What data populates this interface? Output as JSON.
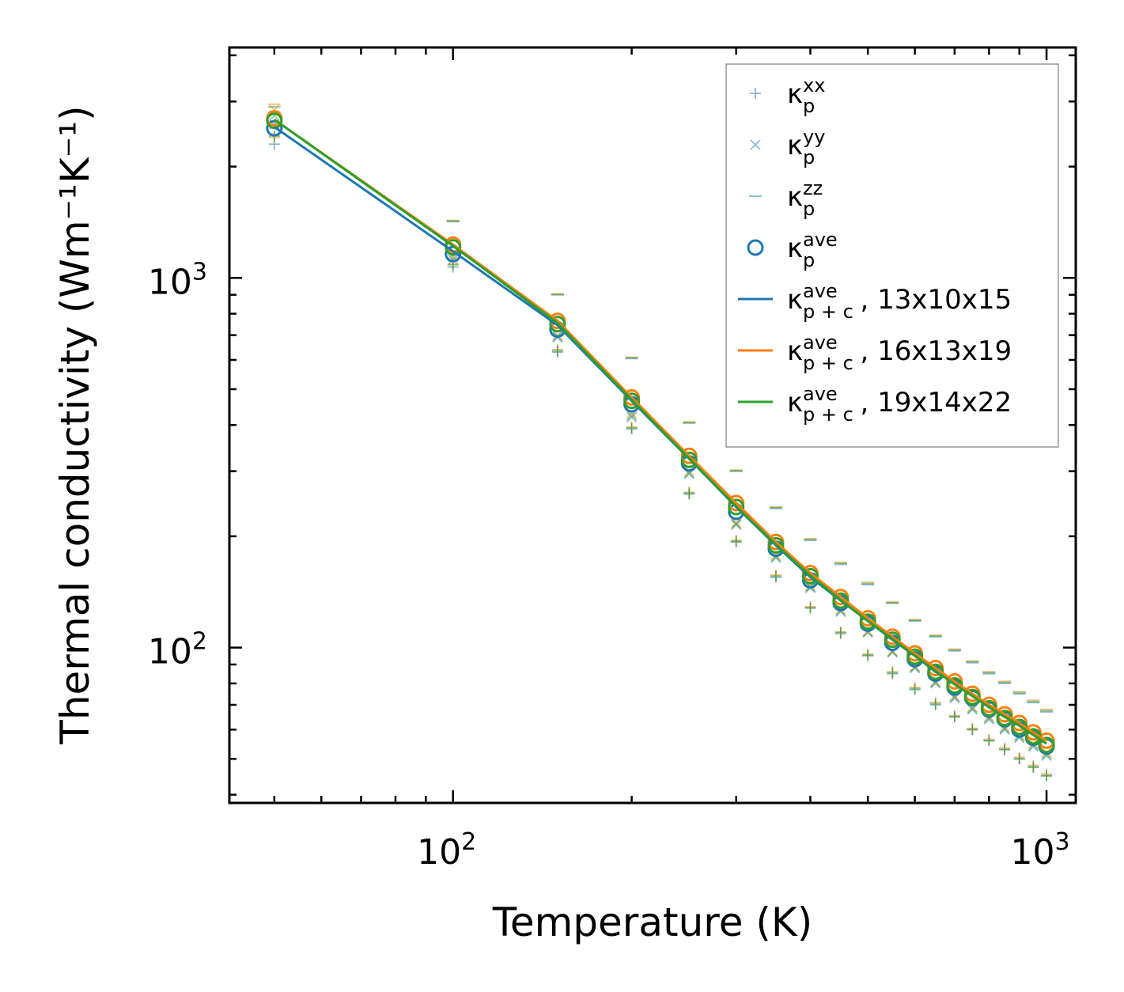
{
  "chart_data": {
    "type": "line",
    "scale": {
      "x": "log",
      "y": "log"
    },
    "xlabel": "Temperature (K)",
    "ylabel": "Thermal conductivity (Wm⁻¹K⁻¹)",
    "xlim": [
      42,
      1120
    ],
    "ylim": [
      38,
      4200
    ],
    "x_major_ticks": [
      {
        "base": "10",
        "exp": "2",
        "value": 100
      },
      {
        "base": "10",
        "exp": "3",
        "value": 1000
      }
    ],
    "y_major_ticks": [
      {
        "base": "10",
        "exp": "2",
        "value": 100
      },
      {
        "base": "10",
        "exp": "3",
        "value": 1000
      }
    ],
    "x": [
      50,
      100,
      150,
      200,
      250,
      300,
      350,
      400,
      450,
      500,
      550,
      600,
      650,
      700,
      750,
      800,
      850,
      900,
      950,
      1000
    ],
    "series": [
      {
        "name": "13x10x15",
        "color": "#1f77b4",
        "kxx": [
          2300,
          1070,
          630,
          390,
          260,
          193,
          155,
          128,
          109,
          95,
          85,
          77,
          70,
          65,
          60,
          56,
          53,
          50,
          47.5,
          45
        ],
        "kyy": [
          2600,
          1120,
          690,
          420,
          295,
          215,
          175,
          145,
          125,
          110,
          97,
          88,
          80,
          73,
          68,
          64,
          60,
          57,
          54,
          51
        ],
        "kzz": [
          2800,
          1420,
          900,
          605,
          405,
          300,
          238,
          195,
          168,
          148,
          132,
          118,
          107,
          98,
          91,
          85,
          80,
          75,
          71,
          67
        ],
        "kave": [
          2540,
          1160,
          725,
          455,
          315,
          233,
          185,
          152,
          132,
          116,
          103,
          93,
          85,
          78,
          73,
          68,
          64,
          60,
          57,
          54
        ],
        "kave_pc": [
          2560,
          1180,
          745,
          465,
          324,
          240,
          189,
          155,
          134,
          118,
          105,
          95,
          86,
          80,
          74,
          69,
          65,
          61.5,
          58,
          55
        ]
      },
      {
        "name": "16x13x19",
        "color": "#ff7f0e",
        "kxx": [
          2400,
          1090,
          640,
          395,
          263,
          195,
          157,
          129,
          110,
          96,
          86,
          78,
          71,
          65.5,
          60.5,
          56.5,
          53.5,
          50.5,
          48,
          45.5
        ],
        "kyy": [
          2850,
          1160,
          700,
          430,
          300,
          218,
          178,
          147,
          127,
          111,
          98,
          89,
          81,
          74,
          69,
          65,
          61,
          58,
          55,
          52
        ],
        "kzz": [
          2950,
          1430,
          905,
          610,
          408,
          302,
          240,
          197,
          170,
          150,
          133,
          119,
          108,
          99,
          92,
          86,
          81,
          76,
          72,
          68
        ],
        "kave": [
          2700,
          1230,
          765,
          475,
          330,
          246,
          193,
          159,
          137,
          120,
          107,
          96.5,
          88,
          81,
          75,
          70,
          66,
          62.5,
          59,
          56
        ],
        "kave_pc": [
          2680,
          1230,
          765,
          475,
          330,
          246,
          193,
          159,
          137,
          120,
          107,
          96.5,
          88,
          81,
          75,
          70,
          66,
          62.5,
          59,
          56
        ]
      },
      {
        "name": "19x14x22",
        "color": "#2ca02c",
        "kxx": [
          2420,
          1085,
          635,
          393,
          262,
          194,
          156,
          128,
          110,
          95.5,
          85.5,
          77.5,
          70.5,
          65,
          60,
          56,
          53,
          50,
          47.5,
          45
        ],
        "kyy": [
          2750,
          1140,
          695,
          425,
          297,
          216,
          176,
          146,
          126,
          110,
          97.5,
          88.5,
          80.5,
          73.5,
          68.5,
          64.5,
          60.5,
          57.5,
          54.5,
          51.5
        ],
        "kzz": [
          2900,
          1425,
          902,
          608,
          406,
          301,
          239,
          196,
          169,
          149,
          132,
          118.5,
          107.5,
          98.5,
          91.5,
          85.5,
          80.5,
          75.5,
          71.5,
          67.5
        ],
        "kave": [
          2660,
          1210,
          750,
          465,
          322,
          240,
          189,
          156,
          134,
          117.5,
          105,
          94.5,
          86,
          79,
          73.5,
          68.5,
          64.5,
          61,
          57.5,
          54.5
        ],
        "kave_pc": [
          2680,
          1220,
          755,
          468,
          325,
          241,
          190,
          156.5,
          134.5,
          118,
          105.5,
          95,
          86.5,
          79.5,
          74,
          69,
          65,
          61.5,
          58,
          55
        ]
      }
    ],
    "legend": {
      "location": "top-right",
      "entries": [
        {
          "marker": "plus",
          "base": "κ",
          "sup": "xx",
          "sub": "p",
          "suffix": ""
        },
        {
          "marker": "cross",
          "base": "κ",
          "sup": "yy",
          "sub": "p",
          "suffix": ""
        },
        {
          "marker": "dash",
          "base": "κ",
          "sup": "zz",
          "sub": "p",
          "suffix": ""
        },
        {
          "marker": "circle",
          "base": "κ",
          "sup": "ave",
          "sub": "p",
          "suffix": ""
        },
        {
          "marker": "line",
          "color": "#1f77b4",
          "base": "κ",
          "sup": "ave",
          "sub": "p + c",
          "suffix": ", 13x10x15"
        },
        {
          "marker": "line",
          "color": "#ff7f0e",
          "base": "κ",
          "sup": "ave",
          "sub": "p + c",
          "suffix": ", 16x13x19"
        },
        {
          "marker": "line",
          "color": "#2ca02c",
          "base": "κ",
          "sup": "ave",
          "sub": "p + c",
          "suffix": ", 19x14x22"
        }
      ]
    }
  }
}
